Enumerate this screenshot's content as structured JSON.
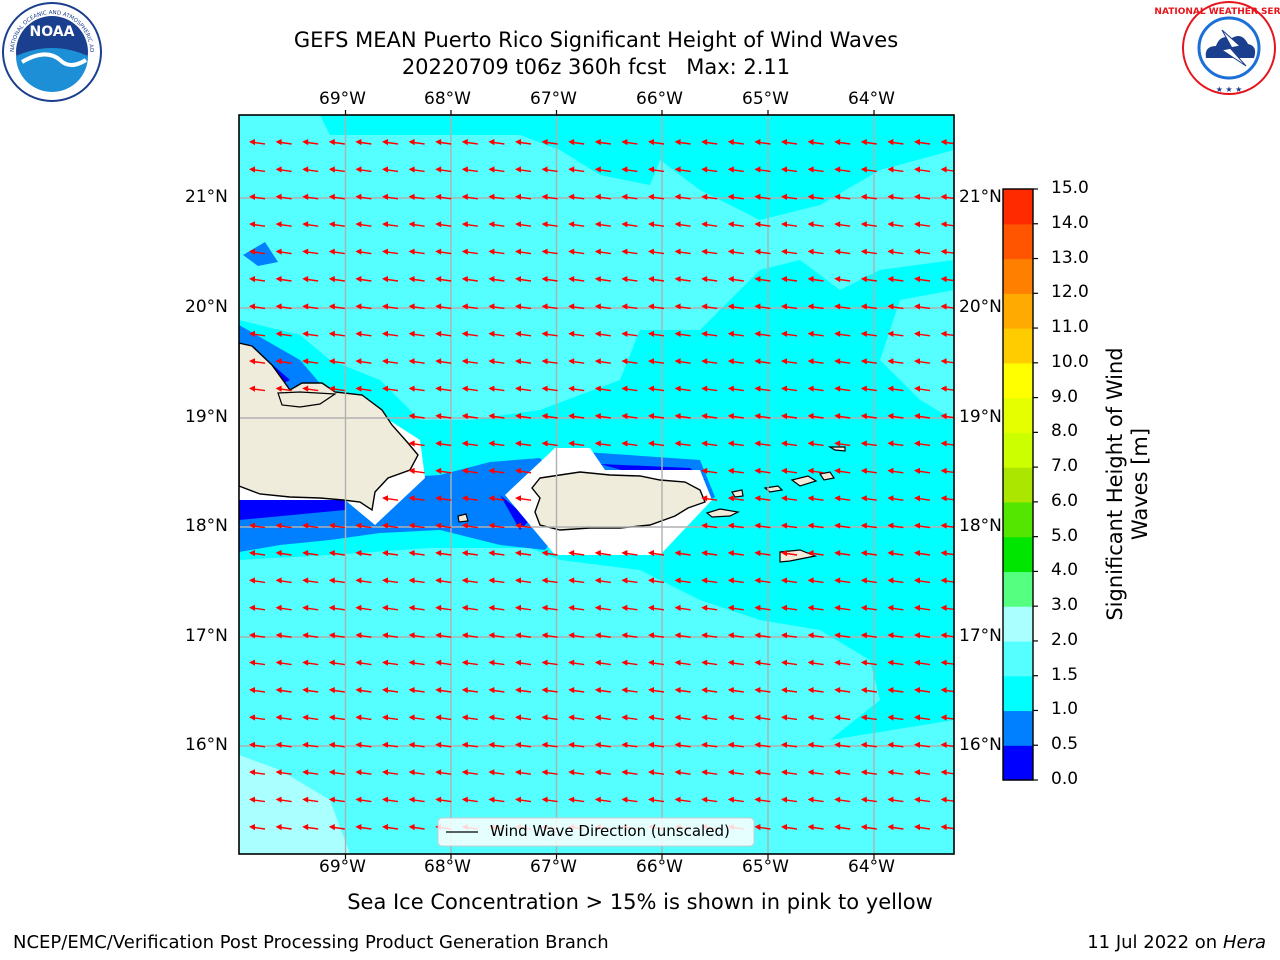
{
  "header": {
    "title_line1": "GEFS MEAN Puerto Rico Significant Height of Wind Waves",
    "title_line2": "20220709 t06z 360h fcst   Max: 2.11"
  },
  "logos": {
    "noaa_text": "NOAA",
    "noaa_ring_text": "NATIONAL OCEANIC AND ATMOSPHERIC ADMINISTRATION · U.S. DEPARTMENT OF COMMERCE",
    "nws_ring_text": "NATIONAL WEATHER SERVICE"
  },
  "map": {
    "lon_ticks": [
      "69°W",
      "68°W",
      "67°W",
      "66°W",
      "65°W",
      "64°W"
    ],
    "lat_ticks": [
      "21°N",
      "20°N",
      "19°N",
      "18°N",
      "17°N",
      "16°N"
    ],
    "legend_label": "Wind Wave Direction (unscaled)",
    "colors": {
      "land": "#efecdc",
      "ocean_base": "#00ffff",
      "band_1_5_2": "#55ffff",
      "band_2_3": "#aaffff",
      "band_0_5_1": "#0080ff",
      "band_0_0_5": "#0000ff",
      "arrow": "#ff0000",
      "grid": "#b0b0b0"
    }
  },
  "colorbar": {
    "label": "Significant Height of Wind Waves [m]",
    "levels": [
      "0.0",
      "0.5",
      "1.0",
      "1.5",
      "2.0",
      "3.0",
      "4.0",
      "5.0",
      "6.0",
      "7.0",
      "8.0",
      "9.0",
      "10.0",
      "11.0",
      "12.0",
      "13.0",
      "14.0",
      "15.0"
    ],
    "colors": [
      "#0000ff",
      "#0080ff",
      "#00ffff",
      "#55ffff",
      "#aaffff",
      "#55ff80",
      "#00e600",
      "#55e600",
      "#aae600",
      "#ccff00",
      "#e6ff00",
      "#ffff00",
      "#ffcc00",
      "#ffaa00",
      "#ff8000",
      "#ff5500",
      "#ff2a00"
    ]
  },
  "footer": {
    "note": "Sea Ice Concentration > 15% is shown in pink to yellow",
    "credit": "NCEP/EMC/Verification Post Processing Product Generation Branch",
    "date": "11 Jul 2022 on ",
    "host": "Hera"
  }
}
